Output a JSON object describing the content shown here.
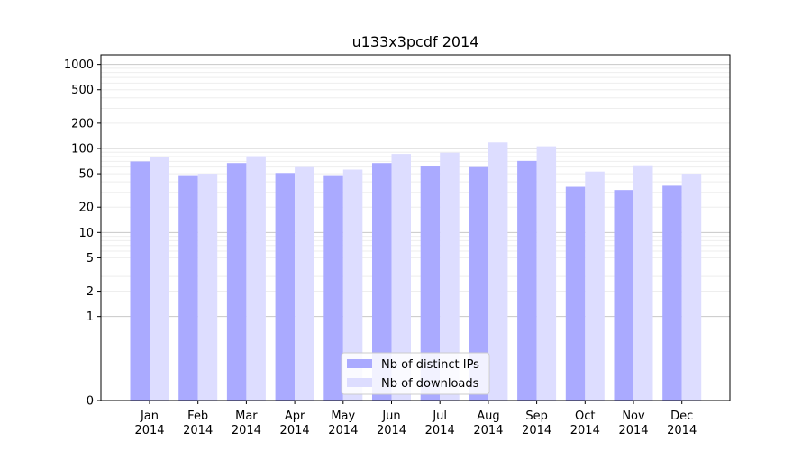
{
  "chart_data": {
    "type": "bar",
    "title": "u133x3pcdf 2014",
    "xlabel": "",
    "ylabel": "",
    "scale": "symlog",
    "grid": true,
    "legend_position": "bottom-center",
    "categories": [
      [
        "Jan",
        "2014"
      ],
      [
        "Feb",
        "2014"
      ],
      [
        "Mar",
        "2014"
      ],
      [
        "Apr",
        "2014"
      ],
      [
        "May",
        "2014"
      ],
      [
        "Jun",
        "2014"
      ],
      [
        "Jul",
        "2014"
      ],
      [
        "Aug",
        "2014"
      ],
      [
        "Sep",
        "2014"
      ],
      [
        "Oct",
        "2014"
      ],
      [
        "Nov",
        "2014"
      ],
      [
        "Dec",
        "2014"
      ]
    ],
    "yticks": [
      "0",
      "1",
      "2",
      "5",
      "10",
      "20",
      "50",
      "100",
      "200",
      "500",
      "1000"
    ],
    "ylim": [
      0,
      1300
    ],
    "series": [
      {
        "name": "Nb of distinct IPs",
        "color": "#aaaaff",
        "values": [
          70,
          47,
          67,
          51,
          47,
          67,
          61,
          60,
          71,
          35,
          32,
          36
        ]
      },
      {
        "name": "Nb of downloads",
        "color": "#ddddff",
        "values": [
          80,
          50,
          81,
          60,
          56,
          86,
          89,
          118,
          106,
          53,
          63,
          50
        ]
      }
    ]
  }
}
